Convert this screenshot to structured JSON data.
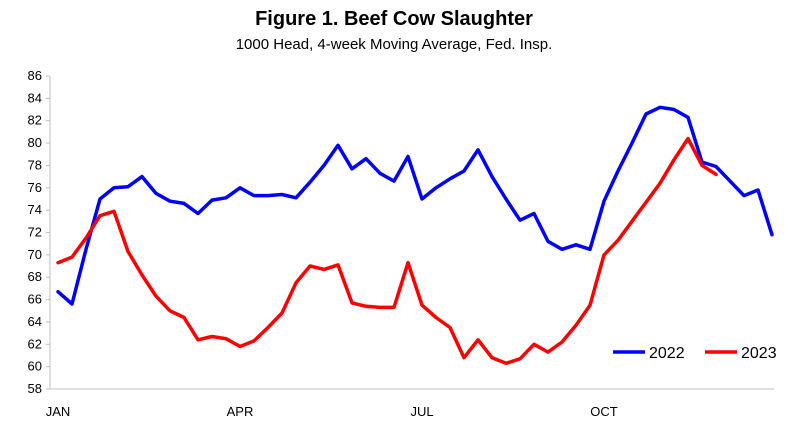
{
  "chart_data": {
    "type": "line",
    "title": "Figure 1. Beef Cow Slaughter",
    "subtitle": "1000 Head, 4-week Moving Average, Fed. Insp.",
    "xlabel": "",
    "ylabel": "",
    "ylim": [
      58,
      86
    ],
    "yticks": [
      58,
      60,
      62,
      64,
      66,
      68,
      70,
      72,
      74,
      76,
      78,
      80,
      82,
      84,
      86
    ],
    "xtick_labels": [
      {
        "label": "JAN",
        "week": 1
      },
      {
        "label": "APR",
        "week": 14
      },
      {
        "label": "JUL",
        "week": 27
      },
      {
        "label": "OCT",
        "week": 40
      }
    ],
    "grid": false,
    "legend_position": "bottom-right",
    "series": [
      {
        "name": "2022",
        "color": "#0000ff",
        "x": [
          1,
          2,
          3,
          4,
          5,
          6,
          7,
          8,
          9,
          10,
          11,
          12,
          13,
          14,
          15,
          16,
          17,
          18,
          19,
          20,
          21,
          22,
          23,
          24,
          25,
          26,
          27,
          28,
          29,
          30,
          31,
          32,
          33,
          34,
          35,
          36,
          37,
          38,
          39,
          40,
          41,
          42,
          43,
          44,
          45,
          46,
          47,
          48,
          49,
          50,
          51,
          52
        ],
        "values": [
          66.7,
          65.6,
          70.5,
          75.0,
          76.0,
          76.1,
          77.0,
          75.5,
          74.8,
          74.6,
          73.7,
          74.9,
          75.1,
          76.0,
          75.3,
          75.3,
          75.4,
          75.1,
          76.5,
          78.0,
          79.8,
          77.7,
          78.6,
          77.3,
          76.6,
          78.8,
          75.0,
          76.0,
          76.8,
          77.5,
          79.4,
          77.0,
          75.0,
          73.1,
          73.7,
          71.2,
          70.5,
          70.9,
          70.5,
          74.8,
          77.5,
          80.0,
          82.6,
          83.2,
          83.0,
          82.3,
          78.3,
          77.9,
          76.6,
          75.3,
          75.8,
          71.8
        ]
      },
      {
        "name": "2023",
        "color": "#ff0000",
        "x": [
          1,
          2,
          3,
          4,
          5,
          6,
          7,
          8,
          9,
          10,
          11,
          12,
          13,
          14,
          15,
          16,
          17,
          18,
          19,
          20,
          21,
          22,
          23,
          24,
          25,
          26,
          27,
          28,
          29,
          30,
          31,
          32,
          33,
          34,
          35,
          36,
          37,
          38,
          39,
          40,
          41,
          42,
          43,
          44,
          45,
          46,
          47,
          48
        ],
        "values": [
          69.3,
          69.8,
          71.5,
          73.5,
          73.9,
          70.3,
          68.2,
          66.3,
          65.0,
          64.4,
          62.4,
          62.7,
          62.5,
          61.8,
          62.3,
          63.5,
          64.8,
          67.5,
          69.0,
          68.7,
          69.1,
          65.7,
          65.4,
          65.3,
          65.3,
          69.3,
          65.5,
          64.4,
          63.5,
          60.8,
          62.4,
          60.8,
          60.3,
          60.7,
          62.0,
          61.3,
          62.2,
          63.7,
          65.5,
          70.0,
          71.3,
          73.0,
          74.7,
          76.4,
          78.5,
          80.4,
          78.0,
          77.2
        ]
      }
    ]
  }
}
